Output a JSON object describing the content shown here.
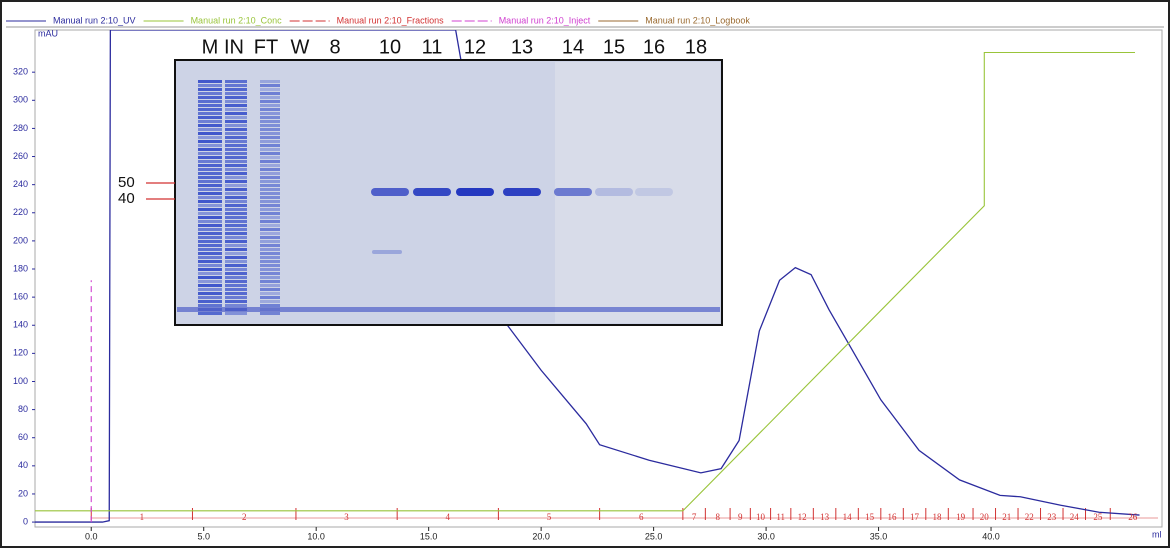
{
  "chart_data": {
    "type": "line",
    "y_label": "mAU",
    "x_label": "ml",
    "xlim": [
      -2.5,
      47.6
    ],
    "ylim": [
      -3.5,
      350
    ],
    "xticks": [
      {
        "value": 0,
        "label": "0.0"
      },
      {
        "value": 5,
        "label": "5.0"
      },
      {
        "value": 10,
        "label": "10.0"
      },
      {
        "value": 15,
        "label": "15.0"
      },
      {
        "value": 20,
        "label": "20.0"
      },
      {
        "value": 25,
        "label": "25.0"
      },
      {
        "value": 30,
        "label": "30.0"
      },
      {
        "value": 35,
        "label": "35.0"
      },
      {
        "value": 40,
        "label": "40.0"
      }
    ],
    "yticks": [
      0,
      20,
      40,
      60,
      80,
      100,
      120,
      140,
      160,
      180,
      200,
      220,
      240,
      260,
      280,
      300,
      320
    ],
    "series": [
      {
        "name": "Manual run 2:10_UV",
        "color": "#2b2b9e",
        "x": [
          -2.5,
          0.5,
          0.8,
          0.85,
          16.2,
          18.5,
          20,
          22,
          22.6,
          24.8,
          27.1,
          28,
          28.8,
          29.7,
          30.6,
          31.3,
          32,
          32.8,
          33.7,
          35.1,
          36.8,
          38.6,
          40.4,
          41.3,
          43.1,
          44.8,
          46.6
        ],
        "values": [
          0,
          0,
          1,
          350,
          350,
          140,
          108,
          70,
          55,
          44,
          35,
          38,
          58,
          136,
          172,
          181,
          176,
          151,
          126,
          87,
          51,
          30,
          19,
          18,
          12,
          7,
          5
        ]
      },
      {
        "name": "Manual run 2:10_Conc",
        "color": "#99c43a",
        "x": [
          -2.5,
          26.3,
          39.7,
          39.7,
          46.4
        ],
        "values": [
          8,
          8,
          225,
          334,
          334
        ]
      },
      {
        "name": "Manual run 2:10_Fractions",
        "color": "#d23232"
      },
      {
        "name": "Manual run 2:10_Inject",
        "color": "#d040d0",
        "x": [
          0,
          0
        ],
        "values": [
          0,
          172
        ]
      },
      {
        "name": "Manual run 2:10_Logbook",
        "color": "#9a6a30"
      }
    ],
    "fractions": {
      "starts": [
        0,
        4.5,
        9.1,
        13.6,
        18.1,
        22.6,
        26.3,
        27.3,
        28.4,
        29.3,
        30.2,
        31.1,
        32.1,
        33.1,
        34.1,
        35.1,
        36.1,
        37.1,
        38.1,
        39.2,
        40.2,
        41.2,
        42.2,
        43.2,
        44.2,
        45.3
      ],
      "labels": [
        "1",
        "2",
        "3",
        "4",
        "5",
        "6",
        "7",
        "8",
        "9",
        "10",
        "11",
        "12",
        "13",
        "14",
        "15",
        "16",
        "17",
        "18",
        "19",
        "20",
        "21",
        "22",
        "23",
        "24",
        "25",
        "26"
      ]
    },
    "gel": {
      "lanes": [
        "M",
        "IN",
        "FT",
        "W",
        "8",
        "10",
        "11",
        "12",
        "13",
        "14",
        "15",
        "16",
        "18"
      ],
      "markers": [
        "50",
        "40"
      ]
    }
  }
}
